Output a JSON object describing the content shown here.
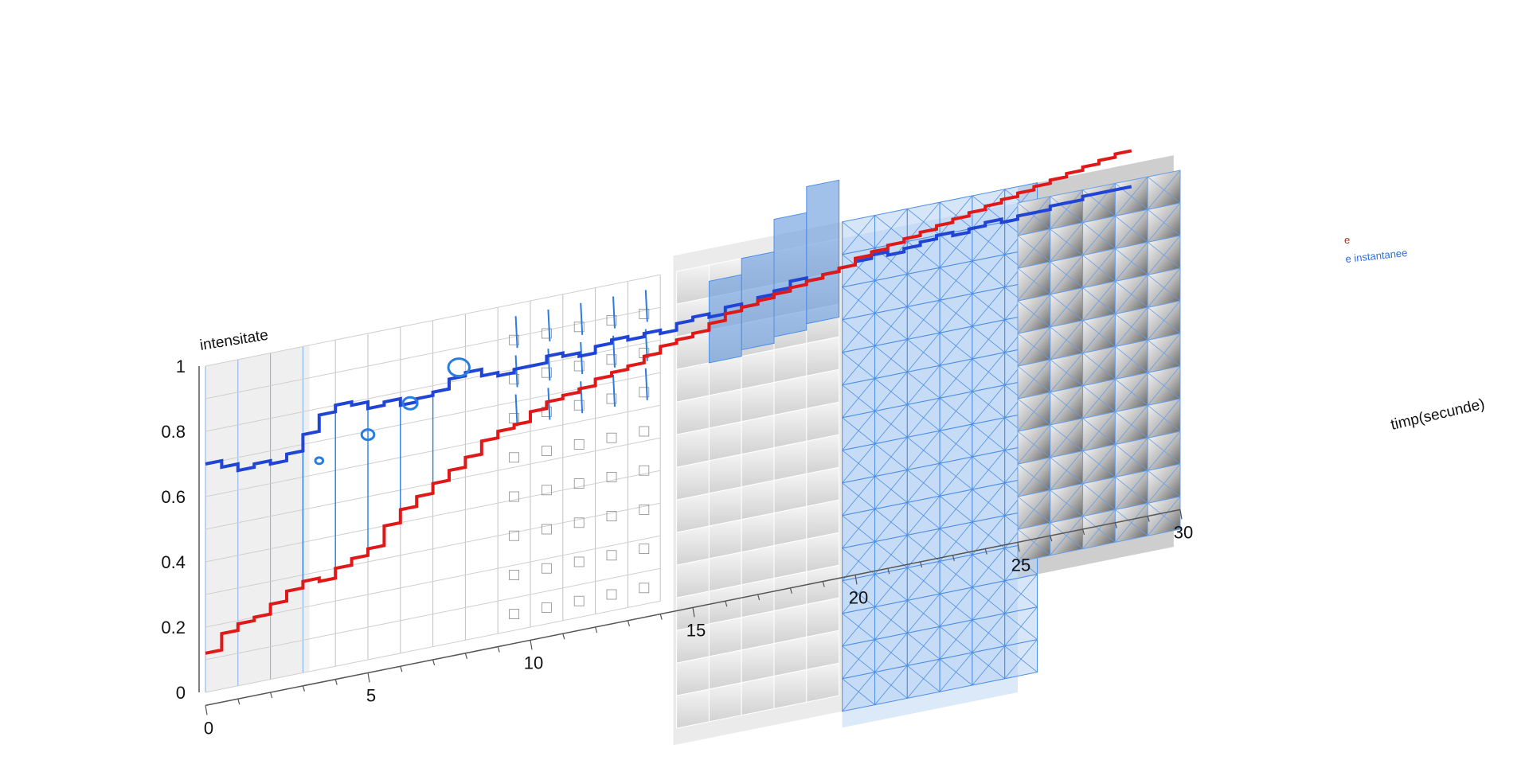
{
  "chart_data": {
    "type": "line",
    "title": "",
    "xlabel": "timp(secunde)",
    "ylabel": "intensitate",
    "xlim": [
      0,
      30
    ],
    "ylim": [
      0,
      1
    ],
    "x_ticks": [
      0,
      5,
      10,
      15,
      20,
      25,
      30
    ],
    "y_ticks": [
      0,
      0.2,
      0.4,
      0.6,
      0.8,
      1
    ],
    "x_tick_labels": [
      "0",
      "5",
      "10",
      "15",
      "20",
      "25",
      "30"
    ],
    "y_tick_labels": [
      "0",
      "0.2",
      "0.4",
      "0.6",
      "0.8",
      "1"
    ],
    "grid": true,
    "step": true,
    "legend_position": "right",
    "legend_fragments": [
      "e",
      "e instantanee"
    ],
    "x": [
      0,
      0.5,
      1,
      1.5,
      2,
      2.5,
      3,
      3.5,
      4,
      4.5,
      5,
      5.5,
      6,
      6.5,
      7,
      7.5,
      8,
      8.5,
      9,
      9.5,
      10,
      10.5,
      11,
      11.5,
      12,
      12.5,
      13,
      13.5,
      14,
      14.5,
      15,
      15.5,
      16,
      16.5,
      17,
      17.5,
      18,
      18.5,
      19,
      19.5,
      20,
      20.5,
      21,
      21.5,
      22,
      22.5,
      23,
      23.5,
      24,
      24.5,
      25,
      25.5,
      26,
      26.5,
      27,
      27.5,
      28
    ],
    "series": [
      {
        "color": "#1f44d6",
        "values": [
          0.7,
          0.68,
          0.66,
          0.67,
          0.66,
          0.68,
          0.73,
          0.78,
          0.8,
          0.79,
          0.77,
          0.78,
          0.76,
          0.77,
          0.78,
          0.81,
          0.82,
          0.8,
          0.79,
          0.8,
          0.8,
          0.82,
          0.81,
          0.8,
          0.82,
          0.83,
          0.82,
          0.83,
          0.82,
          0.84,
          0.85,
          0.84,
          0.86,
          0.85,
          0.87,
          0.88,
          0.9,
          0.89,
          0.9,
          0.91,
          0.92,
          0.93,
          0.92,
          0.93,
          0.94,
          0.95,
          0.94,
          0.95,
          0.96,
          0.95,
          0.96,
          0.96,
          0.97,
          0.97,
          0.98,
          0.98,
          0.98
        ]
      },
      {
        "color": "#e01818",
        "values": [
          0.12,
          0.17,
          0.19,
          0.2,
          0.23,
          0.26,
          0.28,
          0.27,
          0.3,
          0.32,
          0.34,
          0.4,
          0.44,
          0.47,
          0.5,
          0.53,
          0.56,
          0.6,
          0.62,
          0.63,
          0.66,
          0.68,
          0.69,
          0.7,
          0.72,
          0.73,
          0.74,
          0.76,
          0.78,
          0.79,
          0.8,
          0.82,
          0.84,
          0.85,
          0.86,
          0.87,
          0.88,
          0.89,
          0.9,
          0.91,
          0.93,
          0.94,
          0.95,
          0.96,
          0.97,
          0.98,
          0.99,
          1.0,
          1.01,
          1.02,
          1.03,
          1.04,
          1.05,
          1.06,
          1.07,
          1.08,
          1.09
        ]
      }
    ],
    "circle_markers": [
      {
        "x": 3.5,
        "y": 0.64,
        "r": 0.08
      },
      {
        "x": 5.0,
        "y": 0.69,
        "r": 0.13
      },
      {
        "x": 6.3,
        "y": 0.76,
        "r": 0.15
      },
      {
        "x": 7.8,
        "y": 0.84,
        "r": 0.22
      }
    ]
  }
}
